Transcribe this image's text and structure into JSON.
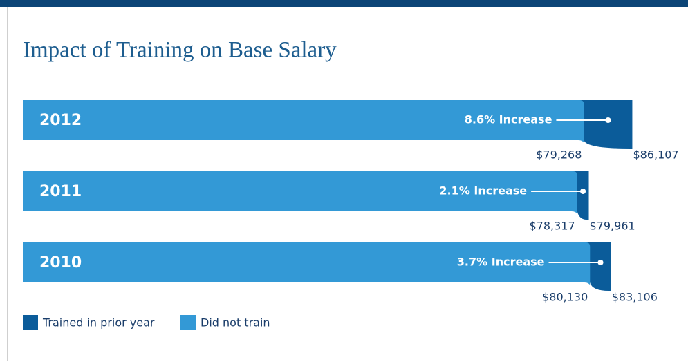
{
  "chart_data": {
    "type": "bar",
    "title": "Impact of Training on Base Salary",
    "categories": [
      "2012",
      "2011",
      "2010"
    ],
    "series": [
      {
        "name": "Trained in prior year",
        "color": "#0b5c9a",
        "values": [
          86107,
          79961,
          83106
        ],
        "value_labels": [
          "$86,107",
          "$79,961",
          "$83,106"
        ]
      },
      {
        "name": "Did not train",
        "color": "#3399d6",
        "values": [
          79268,
          78317,
          80130
        ],
        "value_labels": [
          "$79,268",
          "$78,317",
          "$80,130"
        ]
      }
    ],
    "annotations": [
      "8.6% Increase",
      "2.1% Increase",
      "3.7% Increase"
    ],
    "xlim": [
      0,
      93000
    ],
    "orientation": "horizontal",
    "legend": "bottom-left"
  }
}
